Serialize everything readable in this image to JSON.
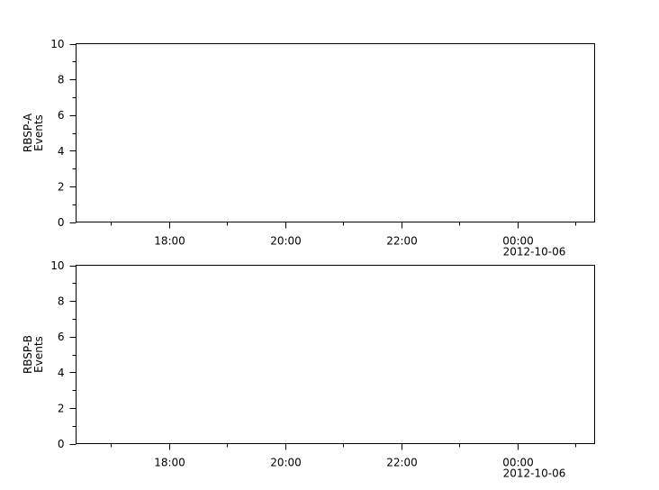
{
  "chart_data": [
    {
      "type": "line",
      "ylabel": [
        "RBSP-A",
        "Events"
      ],
      "xlabel": "",
      "ylim": [
        0,
        10
      ],
      "yticks": [
        "0",
        "2",
        "4",
        "6",
        "8",
        "10"
      ],
      "xlim": [
        "2012-10-05T16:24",
        "2012-10-06T01:20"
      ],
      "xticks": [
        {
          "t": "2012-10-05T18:00",
          "label": "18:00"
        },
        {
          "t": "2012-10-05T20:00",
          "label": "20:00"
        },
        {
          "t": "2012-10-05T22:00",
          "label": "22:00"
        },
        {
          "t": "2012-10-06T00:00",
          "label": "00:00",
          "sublabel": "2012-10-06"
        }
      ],
      "series": [],
      "grid": false
    },
    {
      "type": "line",
      "ylabel": [
        "RBSP-B",
        "Events"
      ],
      "xlabel": "",
      "ylim": [
        0,
        10
      ],
      "yticks": [
        "0",
        "2",
        "4",
        "6",
        "8",
        "10"
      ],
      "xlim": [
        "2012-10-05T16:24",
        "2012-10-06T01:20"
      ],
      "xticks": [
        {
          "t": "2012-10-05T18:00",
          "label": "18:00"
        },
        {
          "t": "2012-10-05T20:00",
          "label": "20:00"
        },
        {
          "t": "2012-10-05T22:00",
          "label": "22:00"
        },
        {
          "t": "2012-10-06T00:00",
          "label": "00:00",
          "sublabel": "2012-10-06"
        }
      ],
      "series": [],
      "grid": false
    }
  ]
}
